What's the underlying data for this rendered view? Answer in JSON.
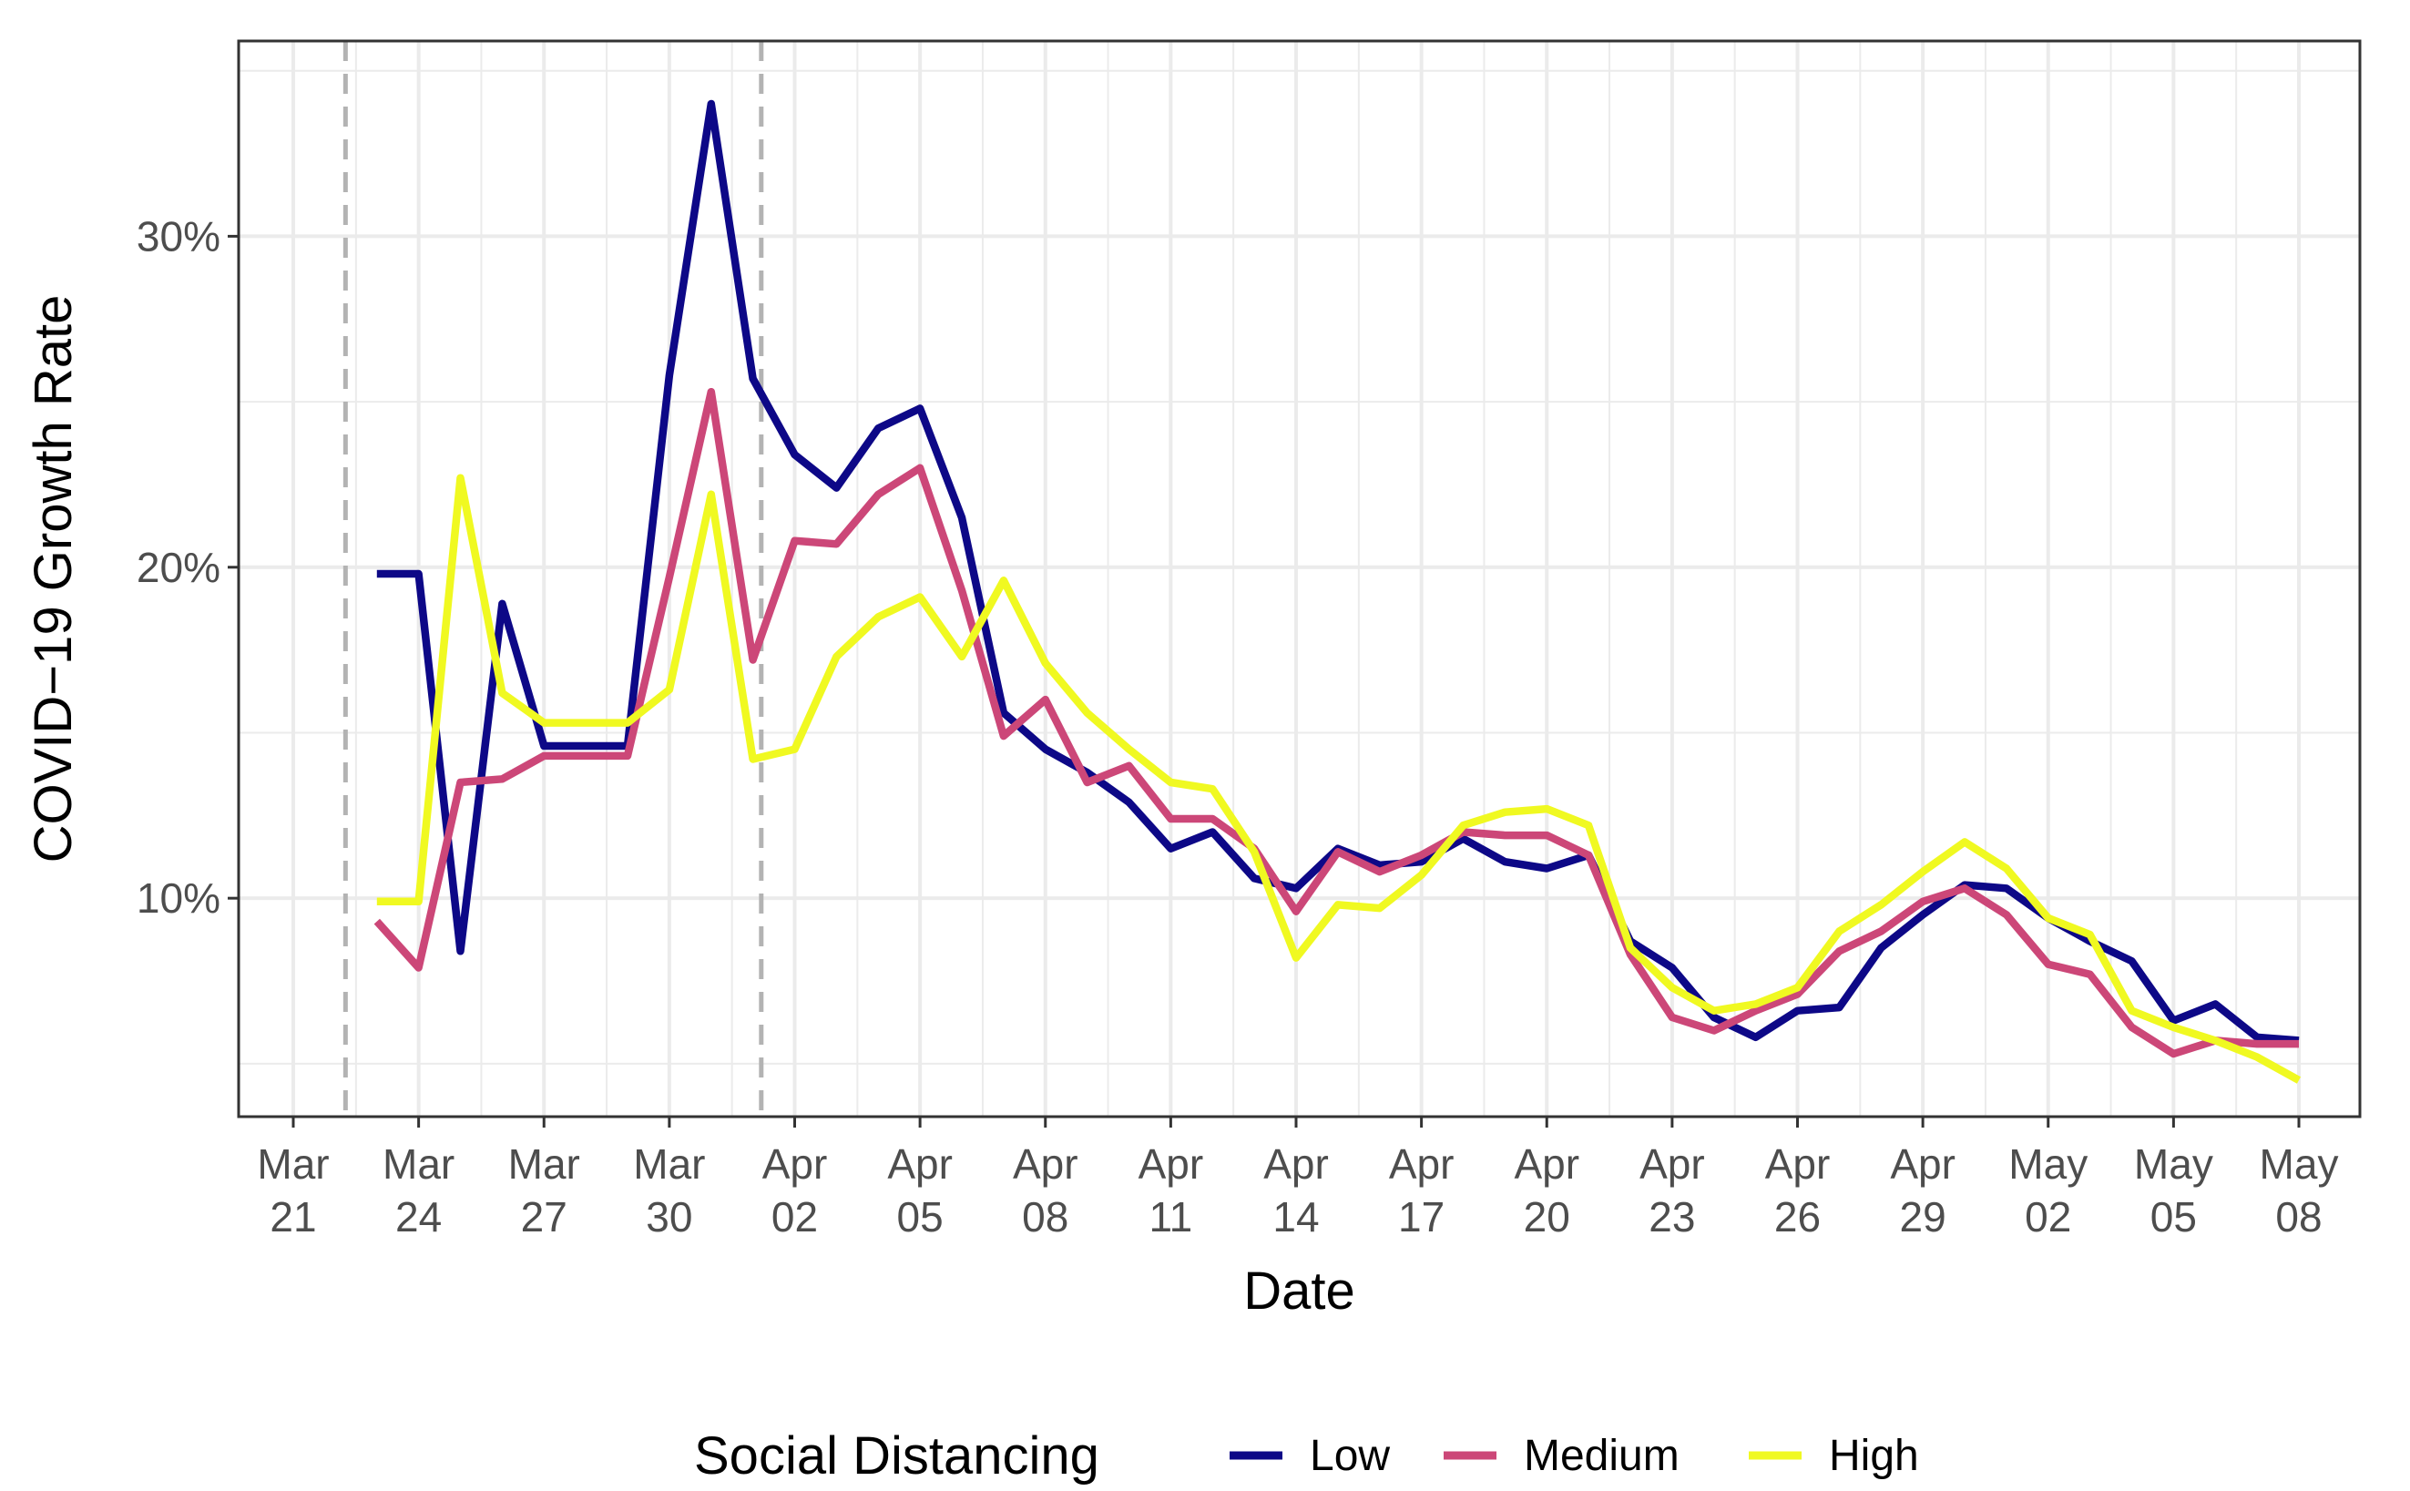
{
  "chart_data": {
    "type": "line",
    "title": "",
    "xlabel": "Date",
    "ylabel": "COVID−19 Growth Rate",
    "ylim": [
      0.034,
      0.359
    ],
    "y_ticks": [
      {
        "value": 0.1,
        "label": "10%"
      },
      {
        "value": 0.2,
        "label": "20%"
      },
      {
        "value": 0.3,
        "label": "30%"
      }
    ],
    "x_ticks": [
      {
        "day": 0,
        "label": [
          "Mar",
          "21"
        ]
      },
      {
        "day": 3,
        "label": [
          "Mar",
          "24"
        ]
      },
      {
        "day": 6,
        "label": [
          "Mar",
          "27"
        ]
      },
      {
        "day": 9,
        "label": [
          "Mar",
          "30"
        ]
      },
      {
        "day": 12,
        "label": [
          "Apr",
          "02"
        ]
      },
      {
        "day": 15,
        "label": [
          "Apr",
          "05"
        ]
      },
      {
        "day": 18,
        "label": [
          "Apr",
          "08"
        ]
      },
      {
        "day": 21,
        "label": [
          "Apr",
          "11"
        ]
      },
      {
        "day": 24,
        "label": [
          "Apr",
          "14"
        ]
      },
      {
        "day": 27,
        "label": [
          "Apr",
          "17"
        ]
      },
      {
        "day": 30,
        "label": [
          "Apr",
          "20"
        ]
      },
      {
        "day": 33,
        "label": [
          "Apr",
          "23"
        ]
      },
      {
        "day": 36,
        "label": [
          "Apr",
          "26"
        ]
      },
      {
        "day": 39,
        "label": [
          "Apr",
          "29"
        ]
      },
      {
        "day": 42,
        "label": [
          "May",
          "02"
        ]
      },
      {
        "day": 45,
        "label": [
          "May",
          "05"
        ]
      },
      {
        "day": 48,
        "label": [
          "May",
          "08"
        ]
      }
    ],
    "x_range_days": [
      0,
      49.2
    ],
    "x_day0_date": "Mar 21",
    "vlines_days": [
      1.25,
      11.2
    ],
    "x_days": [
      2,
      3,
      4,
      5,
      6,
      7,
      8,
      9,
      10,
      11,
      12,
      13,
      14,
      15,
      16,
      17,
      18,
      19,
      20,
      21,
      22,
      23,
      24,
      25,
      26,
      27,
      28,
      29,
      30,
      31,
      32,
      33,
      34,
      35,
      36,
      37,
      38,
      39,
      40,
      41,
      42,
      43,
      44,
      45,
      46,
      47,
      48
    ],
    "series": [
      {
        "name": "Low",
        "color": "#0d0887",
        "values": [
          0.198,
          0.198,
          0.084,
          0.189,
          0.146,
          0.146,
          0.146,
          0.258,
          0.34,
          0.257,
          0.234,
          0.224,
          0.242,
          0.248,
          0.215,
          0.156,
          0.145,
          0.138,
          0.129,
          0.115,
          0.12,
          0.106,
          0.103,
          0.115,
          0.11,
          0.111,
          0.118,
          0.111,
          0.109,
          0.113,
          0.087,
          0.079,
          0.064,
          0.058,
          0.066,
          0.067,
          0.085,
          0.095,
          0.104,
          0.103,
          0.094,
          0.087,
          0.081,
          0.063,
          0.068,
          0.058,
          0.057
        ]
      },
      {
        "name": "Medium",
        "color": "#cc4778",
        "values": [
          0.093,
          0.079,
          0.135,
          0.136,
          0.143,
          0.143,
          0.143,
          0.197,
          0.253,
          0.172,
          0.208,
          0.207,
          0.222,
          0.23,
          0.193,
          0.149,
          0.16,
          0.135,
          0.14,
          0.124,
          0.124,
          0.115,
          0.096,
          0.114,
          0.108,
          0.113,
          0.12,
          0.119,
          0.119,
          0.113,
          0.083,
          0.064,
          0.06,
          0.066,
          0.071,
          0.084,
          0.09,
          0.099,
          0.103,
          0.095,
          0.08,
          0.077,
          0.061,
          0.053,
          0.057,
          0.056,
          0.056
        ]
      },
      {
        "name": "High",
        "color": "#f0f921",
        "values": [
          0.099,
          0.099,
          0.227,
          0.162,
          0.153,
          0.153,
          0.153,
          0.163,
          0.222,
          0.142,
          0.145,
          0.173,
          0.185,
          0.191,
          0.173,
          0.196,
          0.171,
          0.156,
          0.145,
          0.135,
          0.133,
          0.114,
          0.082,
          0.098,
          0.097,
          0.107,
          0.122,
          0.126,
          0.127,
          0.122,
          0.085,
          0.073,
          0.066,
          0.068,
          0.073,
          0.09,
          0.098,
          0.108,
          0.117,
          0.109,
          0.094,
          0.089,
          0.066,
          0.061,
          0.057,
          0.052,
          0.045
        ]
      }
    ],
    "legend": {
      "title": "Social Distancing",
      "position": "bottom",
      "entries": [
        "Low",
        "Medium",
        "High"
      ]
    },
    "grid": true
  }
}
